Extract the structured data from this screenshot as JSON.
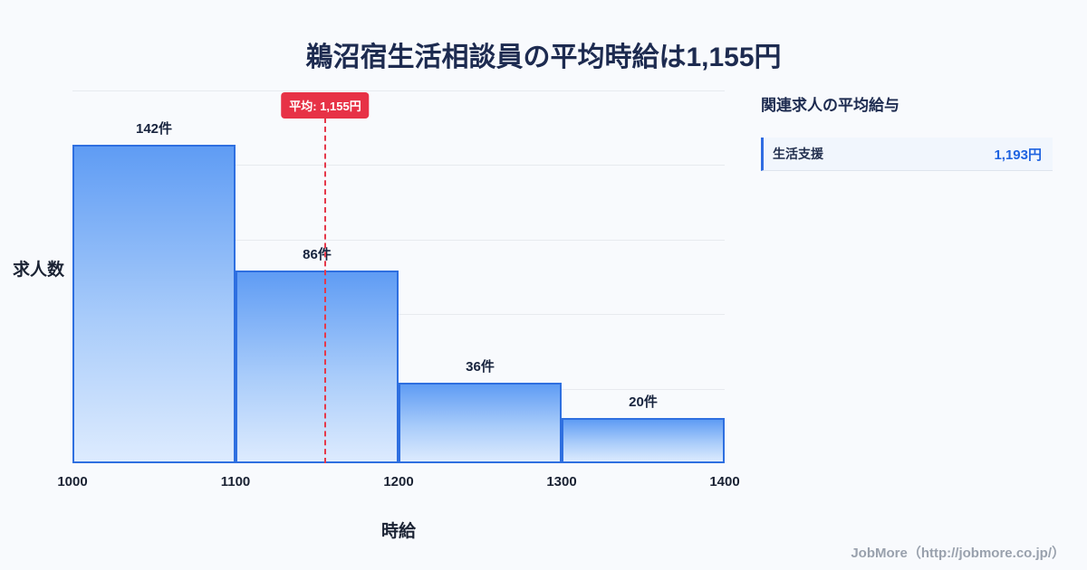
{
  "title": "鵜沼宿生活相談員の平均時給は1,155円",
  "chart_data": {
    "type": "bar",
    "title": "鵜沼宿生活相談員の平均時給は1,155円",
    "categories": [
      "1000-1100",
      "1100-1200",
      "1200-1300",
      "1300-1400"
    ],
    "values": [
      142,
      86,
      36,
      20
    ],
    "bar_labels": [
      "142件",
      "86件",
      "36件",
      "20件"
    ],
    "x_ticks": [
      "1000",
      "1100",
      "1200",
      "1300",
      "1400"
    ],
    "xlim": [
      1000,
      1400
    ],
    "ylim": [
      0,
      166
    ],
    "xlabel": "時給",
    "ylabel": "求人数",
    "grid": "horizontal-light",
    "legend": "none",
    "average_line": {
      "x": 1155,
      "label": "平均: 1,155円"
    }
  },
  "side_panel": {
    "heading": "関連求人の平均給与",
    "items": [
      {
        "label": "生活支援",
        "value": "1,193円"
      }
    ]
  },
  "footer": {
    "credit": "JobMore（http://jobmore.co.jp/）"
  },
  "colors": {
    "accent_blue": "#2e6fe0",
    "bar_gradient_top": "#5f9cf4",
    "bar_gradient_bottom": "#ddebfe",
    "average_red": "#e73246",
    "title_navy": "#1d2b50",
    "value_blue": "#1f63e0",
    "background": "#f8fafd"
  }
}
